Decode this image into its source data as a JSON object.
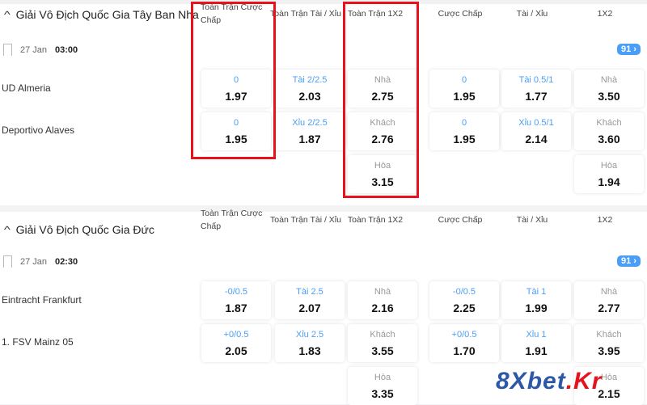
{
  "columns": [
    "Toàn Trận Cược Chấp",
    "Toàn Trận Tài / Xỉu",
    "Toàn Trận 1X2",
    "Cược Chấp",
    "Tài / Xỉu",
    "1X2"
  ],
  "sections": [
    {
      "league": "Giải Vô Địch Quốc Gia Tây Ban Nha",
      "date": "27 Jan",
      "time": "03:00",
      "more": "91 ›",
      "teams": [
        "UD Almeria",
        "Deportivo Alaves"
      ],
      "cells": [
        [
          {
            "l": "0",
            "v": "1.97",
            "c": "blue"
          },
          {
            "l": "Tài 2/2.5",
            "v": "2.03",
            "c": "blue"
          },
          {
            "l": "Nhà",
            "v": "2.75",
            "c": "gray"
          },
          {
            "l": "0",
            "v": "1.95",
            "c": "blue"
          },
          {
            "l": "Tài 0.5/1",
            "v": "1.77",
            "c": "blue"
          },
          {
            "l": "Nhà",
            "v": "3.50",
            "c": "gray"
          }
        ],
        [
          {
            "l": "0",
            "v": "1.95",
            "c": "blue"
          },
          {
            "l": "Xỉu 2/2.5",
            "v": "1.87",
            "c": "blue"
          },
          {
            "l": "Khách",
            "v": "2.76",
            "c": "gray"
          },
          {
            "l": "0",
            "v": "1.95",
            "c": "blue"
          },
          {
            "l": "Xỉu 0.5/1",
            "v": "2.14",
            "c": "blue"
          },
          {
            "l": "Khách",
            "v": "3.60",
            "c": "gray"
          }
        ],
        [
          null,
          null,
          {
            "l": "Hòa",
            "v": "3.15",
            "c": "gray"
          },
          null,
          null,
          {
            "l": "Hòa",
            "v": "1.94",
            "c": "gray"
          }
        ]
      ]
    },
    {
      "league": "Giải Vô Địch Quốc Gia Đức",
      "date": "27 Jan",
      "time": "02:30",
      "more": "91 ›",
      "teams": [
        "Eintracht Frankfurt",
        "1. FSV Mainz 05"
      ],
      "cells": [
        [
          {
            "l": "-0/0.5",
            "v": "1.87",
            "c": "blue"
          },
          {
            "l": "Tài 2.5",
            "v": "2.07",
            "c": "blue"
          },
          {
            "l": "Nhà",
            "v": "2.16",
            "c": "gray"
          },
          {
            "l": "-0/0.5",
            "v": "2.25",
            "c": "blue"
          },
          {
            "l": "Tài 1",
            "v": "1.99",
            "c": "blue"
          },
          {
            "l": "Nhà",
            "v": "2.77",
            "c": "gray"
          }
        ],
        [
          {
            "l": "+0/0.5",
            "v": "2.05",
            "c": "blue"
          },
          {
            "l": "Xỉu 2.5",
            "v": "1.83",
            "c": "blue"
          },
          {
            "l": "Khách",
            "v": "3.55",
            "c": "gray"
          },
          {
            "l": "+0/0.5",
            "v": "1.70",
            "c": "blue"
          },
          {
            "l": "Xỉu 1",
            "v": "1.91",
            "c": "blue"
          },
          {
            "l": "Khách",
            "v": "3.95",
            "c": "gray"
          }
        ],
        [
          null,
          null,
          {
            "l": "Hòa",
            "v": "3.35",
            "c": "gray"
          },
          null,
          null,
          {
            "l": "Hòa",
            "v": "2.15",
            "c": "gray"
          }
        ]
      ]
    }
  ],
  "watermark": {
    "main": "8Xbet",
    "suffix": ".Kr"
  },
  "colors": {
    "accent": "#4a9ef5",
    "highlight": "#e8121c"
  }
}
